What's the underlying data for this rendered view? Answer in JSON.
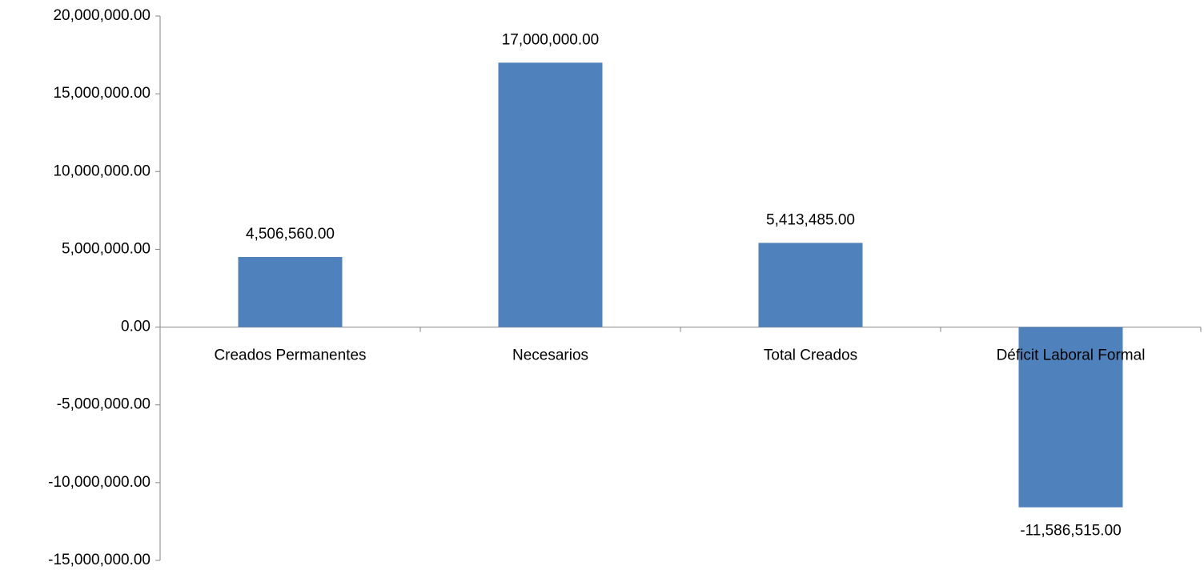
{
  "chart_data": {
    "type": "bar",
    "categories": [
      "Creados Permanentes",
      "Necesarios",
      "Total Creados",
      "Déficit Laboral Formal"
    ],
    "values": [
      4506560,
      17000000,
      5413485,
      -11586515
    ],
    "value_labels": [
      "4,506,560.00",
      "17,000,000.00",
      "5,413,485.00",
      "-11,586,515.00"
    ],
    "color": "#4f81bd",
    "ylim": [
      -15000000,
      20000000
    ],
    "yticks": [
      {
        "value": -15000000,
        "label": "-15,000,000.00"
      },
      {
        "value": -10000000,
        "label": "-10,000,000.00"
      },
      {
        "value": -5000000,
        "label": "-5,000,000.00"
      },
      {
        "value": 0,
        "label": "0.00"
      },
      {
        "value": 5000000,
        "label": "5,000,000.00"
      },
      {
        "value": 10000000,
        "label": "10,000,000.00"
      },
      {
        "value": 15000000,
        "label": "15,000,000.00"
      },
      {
        "value": 20000000,
        "label": "20,000,000.00"
      }
    ],
    "grid": false
  }
}
